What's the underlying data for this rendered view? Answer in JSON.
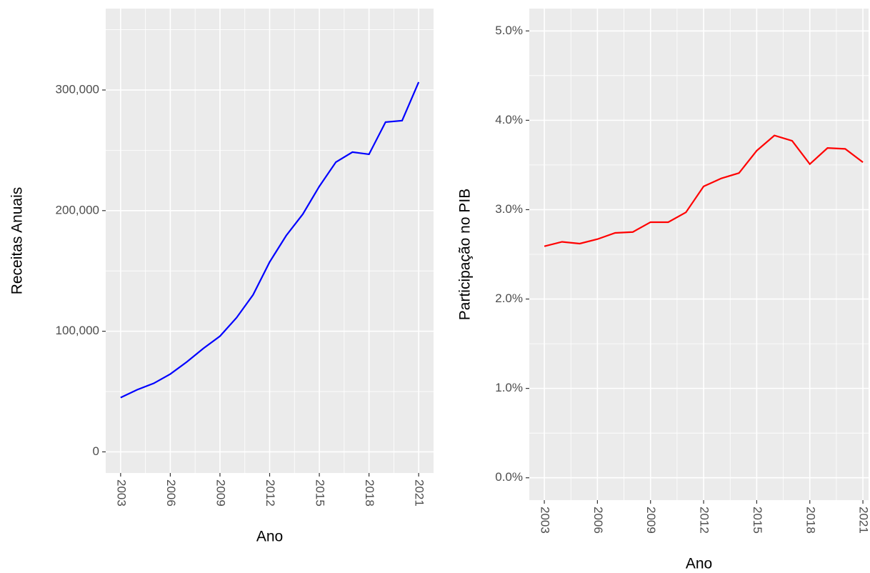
{
  "chart_data": [
    {
      "type": "line",
      "x_label": "Ano",
      "y_label": "Receitas Anuais",
      "x": [
        2003,
        2004,
        2005,
        2006,
        2007,
        2008,
        2009,
        2010,
        2011,
        2012,
        2013,
        2014,
        2015,
        2016,
        2017,
        2018,
        2019,
        2020,
        2021
      ],
      "series": [
        {
          "name": "Receitas",
          "color": "#0000ff",
          "values": [
            45000,
            51500,
            56800,
            64500,
            74600,
            85800,
            95900,
            111200,
            130200,
            157400,
            179300,
            197000,
            220100,
            240200,
            248500,
            246700,
            273400,
            274600,
            306500
          ]
        }
      ],
      "xlim": [
        2002.1,
        2021.9
      ],
      "xticks": [
        2003,
        2006,
        2009,
        2012,
        2015,
        2018,
        2021
      ],
      "xticks_minor": [
        2004.5,
        2007.5,
        2010.5,
        2013.5,
        2016.5,
        2019.5
      ],
      "ylim": [
        -17500,
        367500
      ],
      "yticks": [
        0,
        {
          "value": 100000,
          "label": "100,000"
        },
        {
          "value": 200000,
          "label": "200,000"
        },
        {
          "value": 300000,
          "label": "300,000"
        }
      ],
      "yticks_minor": [
        50000,
        150000,
        250000,
        350000
      ],
      "grid": true
    },
    {
      "type": "line",
      "x_label": "Ano",
      "y_label": "Participação no PIB",
      "x": [
        2003,
        2004,
        2005,
        2006,
        2007,
        2008,
        2009,
        2010,
        2011,
        2012,
        2013,
        2014,
        2015,
        2016,
        2017,
        2018,
        2019,
        2020,
        2021
      ],
      "series": [
        {
          "name": "Participação",
          "color": "#ff0000",
          "values": [
            2.59,
            2.64,
            2.62,
            2.67,
            2.74,
            2.75,
            2.86,
            2.86,
            2.97,
            3.26,
            3.35,
            3.41,
            3.66,
            3.83,
            3.77,
            3.51,
            3.69,
            3.68,
            3.53
          ]
        }
      ],
      "xlim": [
        2002.15,
        2021.32
      ],
      "xticks": [
        2003,
        2006,
        2009,
        2012,
        2015,
        2018,
        2021
      ],
      "xticks_minor": [
        2004.5,
        2007.5,
        2010.5,
        2013.5,
        2016.5,
        2019.5
      ],
      "ylim": [
        -0.25,
        5.25
      ],
      "yticks": [
        {
          "value": 0,
          "label": "0.0%"
        },
        {
          "value": 1,
          "label": "1.0%"
        },
        {
          "value": 2,
          "label": "2.0%"
        },
        {
          "value": 3,
          "label": "3.0%"
        },
        {
          "value": 4,
          "label": "4.0%"
        },
        {
          "value": 5,
          "label": "5.0%"
        }
      ],
      "yticks_minor": [
        0.5,
        1.5,
        2.5,
        3.5,
        4.5
      ],
      "grid": true
    }
  ]
}
